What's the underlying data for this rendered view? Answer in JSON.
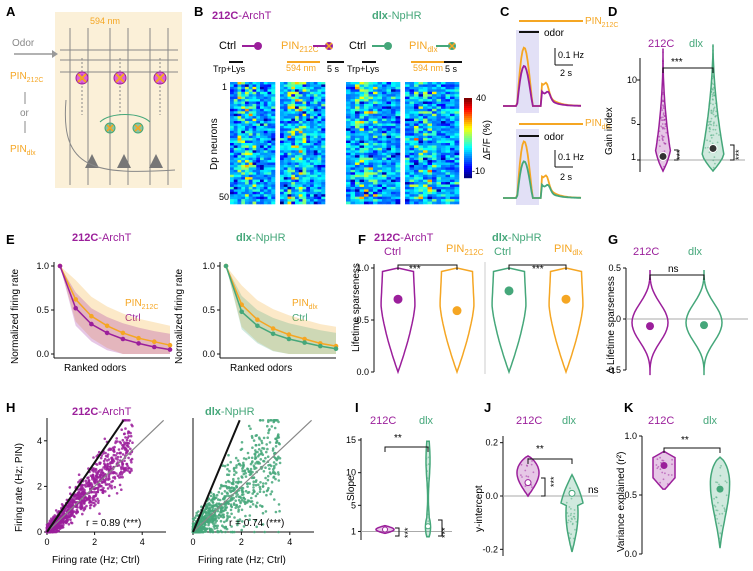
{
  "colors": {
    "purple": "#9b1f9b",
    "orange": "#f5a623",
    "green": "#45a77a",
    "schematic_bg": "#fbf0d8",
    "laser_box": "#e2e0f6"
  },
  "panel_letters": [
    "A",
    "B",
    "C",
    "D",
    "E",
    "F",
    "G",
    "H",
    "I",
    "J",
    "K"
  ],
  "panel_a": {
    "wavelength": "594 nm",
    "odor_label": "Odor",
    "pin212c_main": "PIN",
    "pin212c_sub": "212C",
    "or_label": "or",
    "pindlx_main": "PIN",
    "pindlx_sub": "dlx"
  },
  "panel_b": {
    "left_title_bold": "212C",
    "left_title_rest": "-ArchT",
    "right_title_bold": "dlx",
    "right_title_rest": "-NpHR",
    "ctrl_label": "Ctrl",
    "pin_main": "PIN",
    "pin212c_sub": "212C",
    "pindlx_sub": "dlx",
    "stim_label": "Trp+Lys",
    "light_label": "594 nm",
    "scale_label": "5 s",
    "ylabel": "Dp neurons",
    "row_top": "1",
    "row_bottom": "50",
    "colorbar_max": "40",
    "colorbar_min": "-10",
    "colorbar_label": "ΔF/F (%)"
  },
  "panel_c": {
    "top_pin_main": "PIN",
    "top_pin_sub": "212C",
    "odor_label": "odor",
    "scale_y": "0.1 Hz",
    "scale_x": "2 s",
    "bottom_pin_main": "PIN",
    "bottom_pin_sub": "dlx"
  },
  "panel_e": {
    "left_title_bold": "212C",
    "left_title_rest": "-ArchT",
    "right_title_bold": "dlx",
    "right_title_rest": "-NpHR",
    "ylabel": "Normalized firing rate",
    "xlabel": "Ranked odors",
    "legend_pin_main": "PIN",
    "legend_pin212c_sub": "212C",
    "legend_pindlx_sub": "dlx",
    "legend_ctrl": "Ctrl",
    "yticks": [
      "1.0",
      "0.5",
      "0.0"
    ]
  },
  "panel_f": {
    "left_title_bold": "212C",
    "left_title_rest": "-ArchT",
    "right_title_bold": "dlx",
    "right_title_rest": "-NpHR",
    "ctrl_label": "Ctrl",
    "pin_main": "PIN",
    "pin212c_sub": "212C",
    "pindlx_sub": "dlx",
    "ylabel": "Lifetime sparseness",
    "yticks": [
      "1.0",
      "0.5",
      "0.0"
    ],
    "sig_left": "***",
    "sig_right": "***"
  },
  "panel_g": {
    "labels": [
      "212C",
      "dlx"
    ],
    "ylabel": "Δ Lifetime sparseness",
    "yticks": [
      "0.5",
      "0",
      "-0.5"
    ],
    "sig": "ns"
  },
  "panel_h": {
    "left_title_bold": "212C",
    "left_title_rest": "-ArchT",
    "right_title_bold": "dlx",
    "right_title_rest": "-NpHR",
    "ylabel": "Firing rate (Hz; PIN)",
    "xlabel": "Firing rate (Hz; Ctrl)",
    "xticks": [
      "0",
      "2",
      "4"
    ],
    "yticks": [
      "0",
      "2",
      "4"
    ],
    "r_left": "r = 0.89 (***)",
    "r_right": "r = 0.74 (***)"
  },
  "panel_i": {
    "labels": [
      "212C",
      "dlx"
    ],
    "ylabel": "Slope",
    "yticks": [
      "15",
      "10",
      "5",
      "1"
    ],
    "sig_between": "**",
    "sig_left": "***",
    "sig_right": "***"
  },
  "panel_j": {
    "labels": [
      "212C",
      "dlx"
    ],
    "ylabel": "y-intercept",
    "yticks": [
      "0.2",
      "0.0",
      "-0.2"
    ],
    "sig_between": "**",
    "sig_left": "***",
    "sig_right": "ns"
  },
  "panel_k": {
    "labels": [
      "212C",
      "dlx"
    ],
    "ylabel": "Variance explained (r²)",
    "yticks": [
      "1.0",
      "0.5",
      "0.0"
    ],
    "sig_between": "**"
  },
  "panel_d": {
    "labels": [
      "212C",
      "dlx"
    ],
    "ylabel": "Gain index",
    "yticks": [
      "10",
      "5",
      "1"
    ],
    "sig_between": "***",
    "sig_left": "***",
    "sig_right": "***"
  },
  "chart_data": [
    {
      "id": "D",
      "type": "violin",
      "ylabel": "Gain index",
      "ylim": [
        0,
        14
      ],
      "groups": [
        {
          "name": "212C",
          "median": 1.4,
          "max": 13.5
        },
        {
          "name": "dlx",
          "median": 2.3,
          "max": 14.0
        }
      ]
    },
    {
      "id": "E-left",
      "type": "line",
      "xlabel": "Ranked odors",
      "ylabel": "Normalized firing rate",
      "ylim": [
        0,
        1
      ],
      "series": [
        {
          "name": "PIN212C",
          "values": [
            1.0,
            0.62,
            0.43,
            0.32,
            0.24,
            0.18,
            0.14,
            0.1
          ]
        },
        {
          "name": "Ctrl",
          "values": [
            1.0,
            0.52,
            0.34,
            0.24,
            0.17,
            0.12,
            0.08,
            0.05
          ]
        }
      ]
    },
    {
      "id": "E-right",
      "type": "line",
      "xlabel": "Ranked odors",
      "ylabel": "Normalized firing rate",
      "ylim": [
        0,
        1
      ],
      "series": [
        {
          "name": "PINdlx",
          "values": [
            1.0,
            0.56,
            0.39,
            0.29,
            0.22,
            0.17,
            0.12,
            0.09
          ]
        },
        {
          "name": "Ctrl",
          "values": [
            1.0,
            0.48,
            0.32,
            0.23,
            0.17,
            0.13,
            0.09,
            0.06
          ]
        }
      ]
    },
    {
      "id": "F",
      "type": "violin",
      "ylabel": "Lifetime sparseness",
      "ylim": [
        0,
        1
      ],
      "groups": [
        {
          "name": "212C-ArchT Ctrl",
          "median": 0.7
        },
        {
          "name": "PIN212C",
          "median": 0.59
        },
        {
          "name": "dlx-NpHR Ctrl",
          "median": 0.78
        },
        {
          "name": "PINdlx",
          "median": 0.7
        }
      ]
    },
    {
      "id": "G",
      "type": "violin",
      "ylabel": "Δ Lifetime sparseness",
      "ylim": [
        -0.5,
        0.5
      ],
      "groups": [
        {
          "name": "212C",
          "median": -0.07
        },
        {
          "name": "dlx",
          "median": -0.06
        }
      ]
    },
    {
      "id": "H-left",
      "type": "scatter",
      "xlabel": "Firing rate (Hz; Ctrl)",
      "ylabel": "Firing rate (Hz; PIN)",
      "xlim": [
        0,
        5
      ],
      "ylim": [
        0,
        5
      ],
      "r": 0.89,
      "fit_slope": 1.25,
      "fit_intercept": 0.0
    },
    {
      "id": "H-right",
      "type": "scatter",
      "xlabel": "Firing rate (Hz; Ctrl)",
      "ylabel": "Firing rate (Hz; PIN)",
      "xlim": [
        0,
        5
      ],
      "ylim": [
        0,
        5
      ],
      "r": 0.74,
      "fit_slope": 1.6,
      "fit_intercept": 0.0
    },
    {
      "id": "I",
      "type": "violin",
      "ylabel": "Slope",
      "ylim": [
        0,
        15
      ],
      "groups": [
        {
          "name": "212C",
          "median": 1.3
        },
        {
          "name": "dlx",
          "median": 1.8
        }
      ]
    },
    {
      "id": "J",
      "type": "violin",
      "ylabel": "y-intercept",
      "ylim": [
        -0.25,
        0.2
      ],
      "groups": [
        {
          "name": "212C",
          "median": 0.05
        },
        {
          "name": "dlx",
          "median": 0.01
        }
      ]
    },
    {
      "id": "K",
      "type": "violin",
      "ylabel": "Variance explained (r²)",
      "ylim": [
        0,
        1
      ],
      "groups": [
        {
          "name": "212C",
          "median": 0.75
        },
        {
          "name": "dlx",
          "median": 0.55
        }
      ]
    }
  ]
}
